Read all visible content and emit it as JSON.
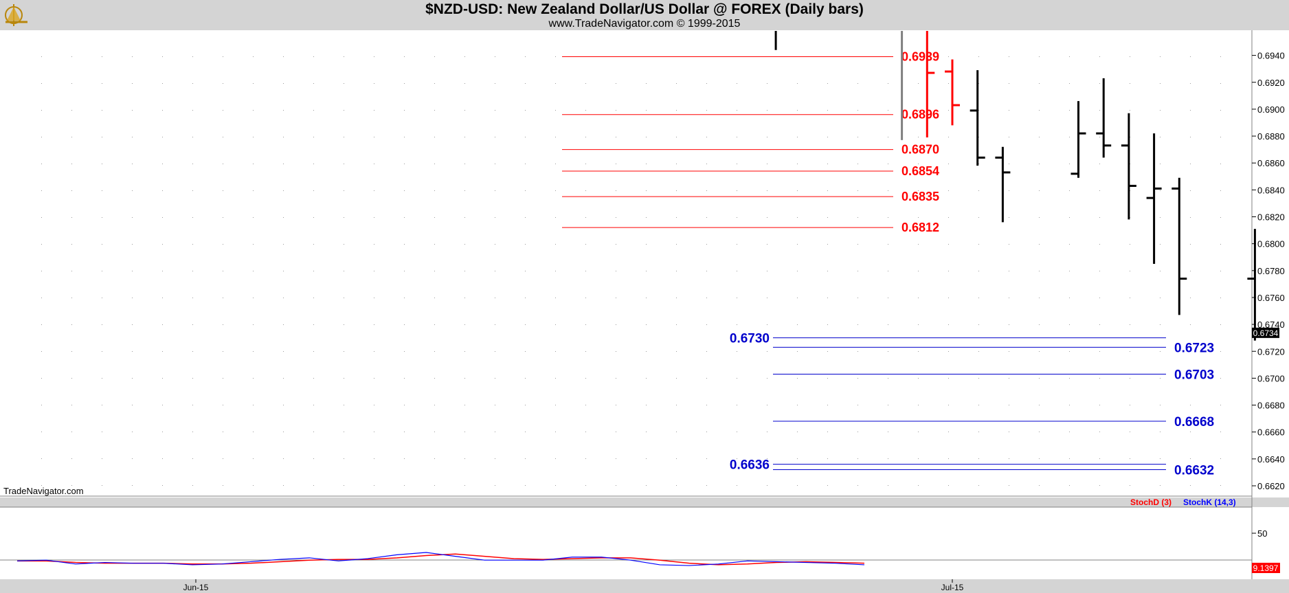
{
  "header": {
    "title": "$NZD-USD:  New Zealand Dollar/US Dollar @ FOREX  (Daily bars)",
    "subtitle": "www.TradeNavigator.com © 1999-2015",
    "logo_icon": "sextant-icon"
  },
  "watermark": "TradeNavigator.com",
  "colors": {
    "background": "#ffffff",
    "frame": "#d4d4d4",
    "resistance": "#ff0000",
    "support": "#0000cc",
    "bar_up": "#000000",
    "bar_highlight": "#ff0000",
    "stoch_d": "#ff0000",
    "stoch_k": "#0000ff"
  },
  "chart_data": {
    "type": "ohlc",
    "x_tick_labels": [
      "Jun-15",
      "Jul-15"
    ],
    "y_ticks": [
      "0.6620",
      "0.6640",
      "0.6660",
      "0.6680",
      "0.6700",
      "0.6720",
      "0.6740",
      "0.6760",
      "0.6780",
      "0.6800",
      "0.6820",
      "0.6840",
      "0.6860",
      "0.6880",
      "0.6900",
      "0.6920",
      "0.6940"
    ],
    "ylim": [
      0.6608,
      0.6957
    ],
    "last_price": "0.6734",
    "bars": [
      {
        "date": "2015-06-24",
        "high": 0.696,
        "low": 0.6944,
        "open": null,
        "close": null,
        "color": "#000000"
      },
      {
        "date": "2015-06-29",
        "high": 0.696,
        "low": 0.6877,
        "open": null,
        "close": null,
        "color": "#808080"
      },
      {
        "date": "2015-06-30",
        "high": 0.696,
        "low": 0.6879,
        "open": null,
        "close": 0.6927,
        "color": "#ff0000"
      },
      {
        "date": "2015-07-01",
        "high": 0.6937,
        "low": 0.6888,
        "open": 0.6928,
        "close": 0.6903,
        "color": "#ff0000"
      },
      {
        "date": "2015-07-02",
        "high": 0.6929,
        "low": 0.6858,
        "open": 0.6899,
        "close": 0.6864,
        "color": "#000000"
      },
      {
        "date": "2015-07-03",
        "high": 0.6872,
        "low": 0.6816,
        "open": 0.6864,
        "close": 0.6853,
        "color": "#000000"
      },
      {
        "date": "2015-07-06",
        "high": 0.6906,
        "low": 0.6849,
        "open": 0.6852,
        "close": 0.6882,
        "color": "#000000"
      },
      {
        "date": "2015-07-07",
        "high": 0.6923,
        "low": 0.6864,
        "open": 0.6882,
        "close": 0.6873,
        "color": "#000000"
      },
      {
        "date": "2015-07-08",
        "high": 0.6897,
        "low": 0.6818,
        "open": 0.6873,
        "close": 0.6843,
        "color": "#000000"
      },
      {
        "date": "2015-07-09",
        "high": 0.6882,
        "low": 0.6785,
        "open": 0.6834,
        "close": 0.6841,
        "color": "#000000"
      },
      {
        "date": "2015-07-10",
        "high": 0.6849,
        "low": 0.6747,
        "open": 0.6841,
        "close": 0.6774,
        "color": "#000000"
      },
      {
        "date": "2015-07-13",
        "high": 0.6811,
        "low": 0.6728,
        "open": 0.6774,
        "close": 0.6734,
        "color": "#000000"
      }
    ],
    "resistance_levels": [
      "0.6939",
      "0.6896",
      "0.6870",
      "0.6854",
      "0.6835",
      "0.6812"
    ],
    "support_levels_left": [
      "0.6730",
      "0.6636"
    ],
    "support_levels_right": [
      "0.6723",
      "0.6703",
      "0.6668",
      "0.6632"
    ],
    "lower_panel": {
      "legend": [
        "StochD (3)",
        "StochK (14,3)"
      ],
      "y_tick": "50",
      "last_value": "9.1397",
      "stoch_k": [
        14,
        15,
        10,
        12,
        11,
        11,
        9,
        10,
        13,
        16,
        18,
        14,
        17,
        22,
        25,
        20,
        15,
        15,
        15,
        19,
        19,
        15,
        9,
        8,
        10,
        14,
        13,
        12,
        11,
        9
      ],
      "stoch_d": [
        14,
        14,
        12,
        11,
        11,
        11,
        10,
        10,
        11,
        13,
        15,
        16,
        16,
        18,
        21,
        23,
        20,
        17,
        16,
        17,
        18,
        18,
        15,
        11,
        9,
        10,
        12,
        13,
        12,
        11
      ]
    }
  }
}
